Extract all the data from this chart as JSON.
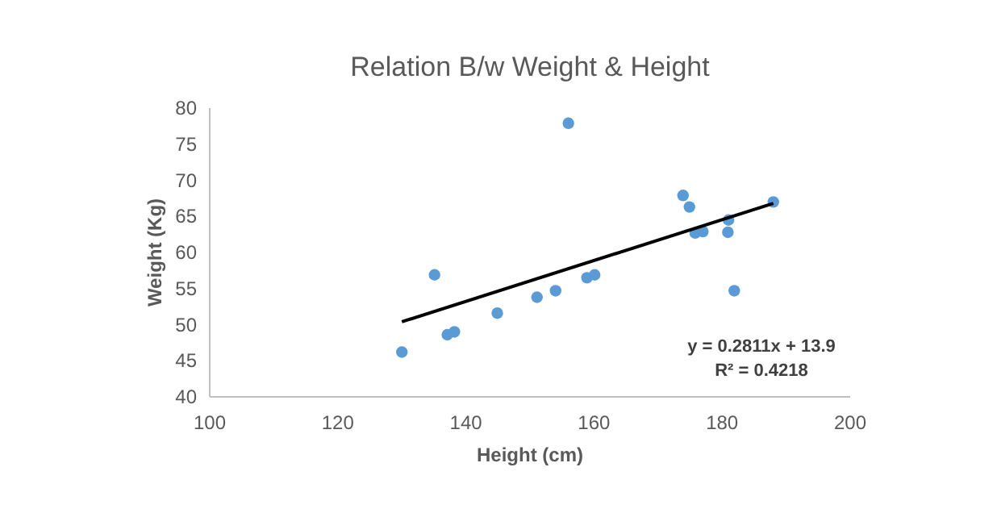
{
  "chart_data": {
    "type": "scatter",
    "title": "Relation B/w Weight & Height",
    "xlabel": "Height (cm)",
    "ylabel": "Weight (Kg)",
    "xlim": [
      100,
      200
    ],
    "xticks": [
      100,
      120,
      140,
      160,
      180,
      200
    ],
    "ylim": [
      40,
      80
    ],
    "yticks": [
      40,
      45,
      50,
      55,
      60,
      65,
      70,
      75,
      80
    ],
    "marker": "circle",
    "x": [
      130,
      135.1,
      137.1,
      138.2,
      144.9,
      151.1,
      154,
      156,
      158.9,
      160.1,
      173.9,
      174.9,
      175.8,
      177,
      181,
      180.9,
      181.9,
      188
    ],
    "series": [
      {
        "color": "#5b9bd5",
        "values": [
          46.2,
          56.9,
          48.6,
          49,
          51.6,
          53.8,
          54.7,
          77.9,
          56.5,
          56.9,
          67.9,
          66.3,
          62.7,
          62.9,
          64.5,
          62.8,
          54.7,
          67
        ]
      },
      {
        "type": "line",
        "color": "#000000",
        "marker": "none",
        "line_style": "solid",
        "x": [
          130,
          188
        ],
        "values": [
          50.4,
          66.8
        ]
      }
    ],
    "annotations": [
      "y = 0.2811x + 13.9",
      "R² = 0.4218"
    ]
  }
}
